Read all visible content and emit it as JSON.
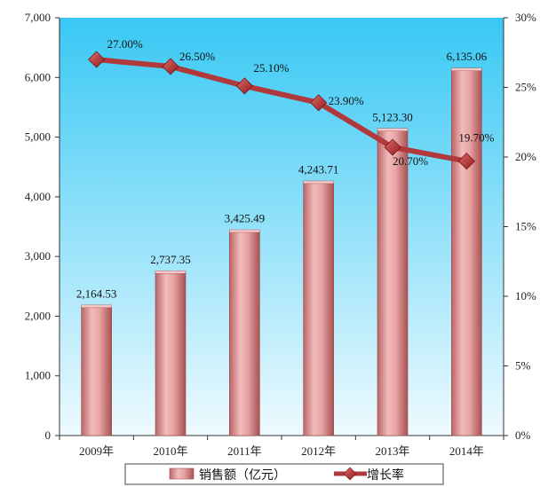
{
  "chart_data": {
    "type": "bar",
    "categories": [
      "2009年",
      "2010年",
      "2011年",
      "2012年",
      "2013年",
      "2014年"
    ],
    "series": [
      {
        "name": "销售额（亿元）",
        "type": "bar",
        "axis": "left",
        "values": [
          2164.53,
          2737.35,
          3425.49,
          4243.71,
          5123.3,
          6135.06
        ],
        "labels": [
          "2,164.53",
          "2,737.35",
          "3,425.49",
          "4,243.71",
          "5,123.30",
          "6,135.06"
        ],
        "color": "#d98a8a"
      },
      {
        "name": "增长率",
        "type": "line",
        "axis": "right",
        "values": [
          27.0,
          26.5,
          25.1,
          23.9,
          20.7,
          19.7
        ],
        "labels": [
          "27.00%",
          "26.50%",
          "25.10%",
          "23.90%",
          "20.70%",
          "19.70%"
        ],
        "color": "#b0393b"
      }
    ],
    "y_left": {
      "ylim": [
        0,
        7000
      ],
      "ticks": [
        0,
        1000,
        2000,
        3000,
        4000,
        5000,
        6000,
        7000
      ],
      "tick_labels": [
        "0",
        "1,000",
        "2,000",
        "3,000",
        "4,000",
        "5,000",
        "6,000",
        "7,000"
      ]
    },
    "y_right": {
      "ylim": [
        0,
        30
      ],
      "ticks": [
        0,
        5,
        10,
        15,
        20,
        25,
        30
      ],
      "tick_labels": [
        "0%",
        "5%",
        "10%",
        "15%",
        "20%",
        "25%",
        "30%"
      ]
    },
    "legend": {
      "position": "bottom"
    },
    "colors": {
      "plot_top": "#38c8f4",
      "plot_bottom": "#e8f8fe",
      "marker": "#b02a2c"
    }
  }
}
